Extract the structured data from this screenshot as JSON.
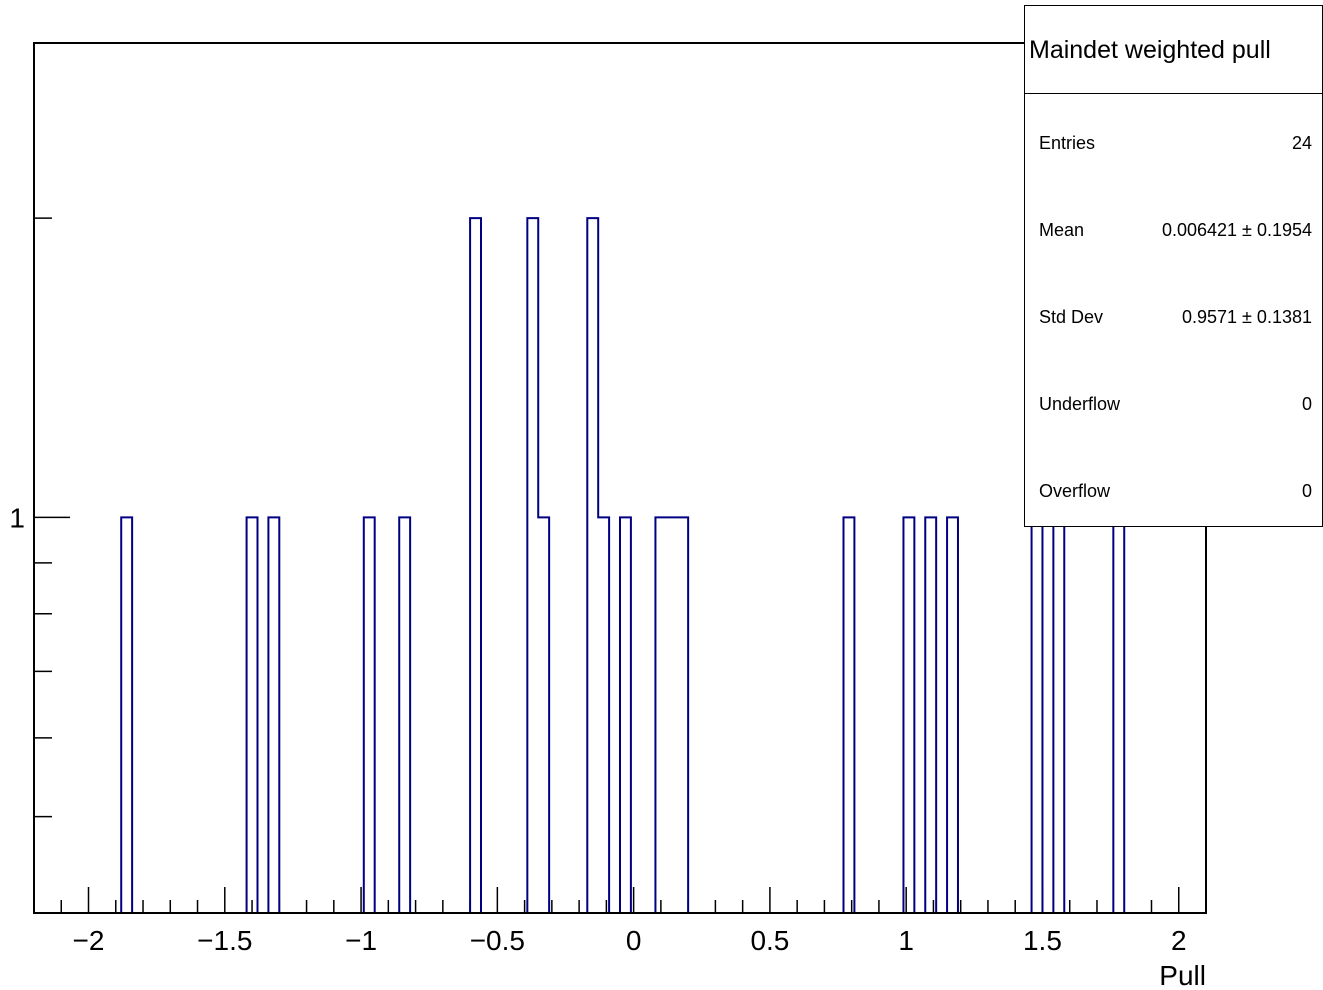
{
  "chart_data": {
    "type": "bar",
    "style": "step-histogram",
    "title": "",
    "xlabel": "Pull",
    "ylabel": "",
    "xlim": [
      -2.2,
      2.1
    ],
    "ylim": [
      0.4,
      3
    ],
    "yscale": "log",
    "bin_width": 0.04,
    "series_color": "#000080",
    "x_ticks": [
      "-2",
      "-1.5",
      "-1",
      "-0.5",
      "0",
      "0.5",
      "1",
      "1.5",
      "2"
    ],
    "y_tick_labels": [
      "1"
    ],
    "bins": [
      {
        "x0": -1.88,
        "value": 1
      },
      {
        "x0": -1.42,
        "value": 1
      },
      {
        "x0": -1.34,
        "value": 1
      },
      {
        "x0": -0.99,
        "value": 1
      },
      {
        "x0": -0.86,
        "value": 1
      },
      {
        "x0": -0.6,
        "value": 2
      },
      {
        "x0": -0.39,
        "value": 2
      },
      {
        "x0": -0.35,
        "value": 1
      },
      {
        "x0": -0.17,
        "value": 2
      },
      {
        "x0": -0.13,
        "value": 1
      },
      {
        "x0": -0.05,
        "value": 1
      },
      {
        "x0": 0.08,
        "value": 1
      },
      {
        "x0": 0.12,
        "value": 1
      },
      {
        "x0": 0.16,
        "value": 1
      },
      {
        "x0": 0.77,
        "value": 1
      },
      {
        "x0": 0.99,
        "value": 1
      },
      {
        "x0": 1.07,
        "value": 1
      },
      {
        "x0": 1.15,
        "value": 1
      },
      {
        "x0": 1.46,
        "value": 1
      },
      {
        "x0": 1.54,
        "value": 1
      },
      {
        "x0": 1.76,
        "value": 1
      }
    ],
    "legend": "top-right"
  },
  "stats": {
    "title": "Maindet weighted pull",
    "rows": [
      {
        "label": "Entries",
        "value": "24"
      },
      {
        "label": "Mean",
        "value": "0.006421 ± 0.1954"
      },
      {
        "label": "Std Dev",
        "value": "0.9571 ± 0.1381"
      },
      {
        "label": "Underflow",
        "value": "0"
      },
      {
        "label": "Overflow",
        "value": "0"
      }
    ]
  }
}
